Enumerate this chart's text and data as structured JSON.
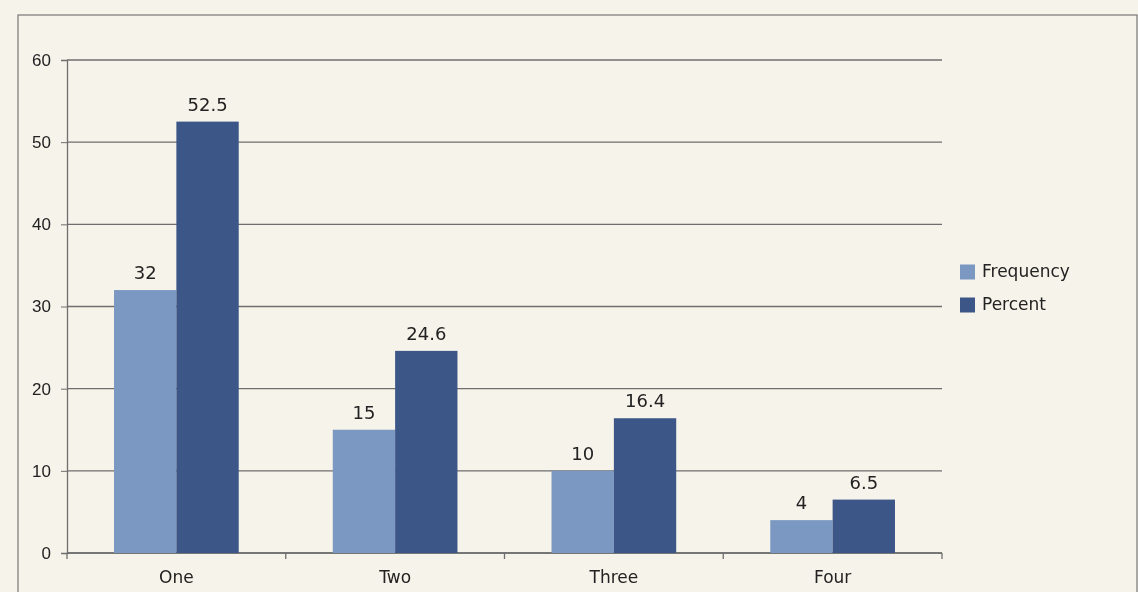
{
  "chart_data": {
    "type": "bar",
    "categories": [
      "One",
      "Two",
      "Three",
      "Four"
    ],
    "series": [
      {
        "name": "Frequency",
        "color": "#7b98c2",
        "values": [
          32,
          15,
          10,
          4
        ]
      },
      {
        "name": "Percent",
        "color": "#3c5688",
        "values": [
          52.5,
          24.6,
          16.4,
          6.5
        ]
      }
    ],
    "ylim": [
      0,
      60
    ],
    "yticks": [
      0,
      10,
      20,
      30,
      40,
      50,
      60
    ],
    "grid": "y",
    "legend": "right",
    "data_labels": true
  }
}
